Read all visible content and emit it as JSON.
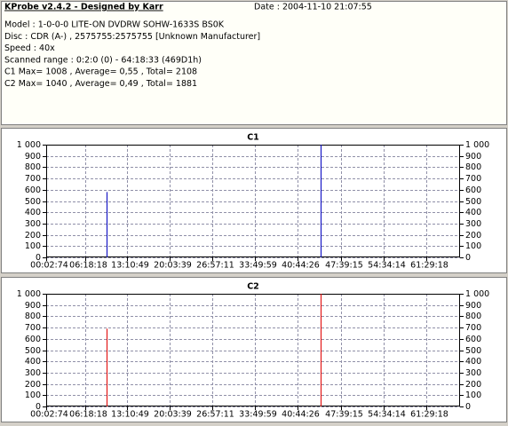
{
  "header": {
    "title": "KProbe v2.4.2 - Designed by Karr",
    "date": "Date : 2004-11-10 21:07:55",
    "lines": [
      "Model : 1-0-0-0 LITE-ON DVDRW SOHW-1633S BS0K",
      "Disc : CDR (A-) , 2575755:2575755 [Unknown Manufacturer]",
      "Speed : 40x",
      "Scanned range : 0:2:0 (0) - 64:18:33 (469D1h)",
      "C1 Max= 1008 , Average= 0,55 , Total= 2108",
      "C2 Max= 1040 , Average= 0,49 , Total= 1881"
    ]
  },
  "chart_data": [
    {
      "type": "bar",
      "title": "C1",
      "x": [
        589,
        2665
      ],
      "values": [
        580,
        1008
      ],
      "color": "#0000c0",
      "xlim": [
        2.987,
        4017
      ],
      "ylim": [
        0,
        1000
      ],
      "grid": true,
      "xticks": [
        {
          "value": 2.987,
          "label": "00:02:74"
        },
        {
          "value": 378.24,
          "label": "06:18:18"
        },
        {
          "value": 790.653,
          "label": "13:10:49"
        },
        {
          "value": 1203.52,
          "label": "20:03:39"
        },
        {
          "value": 1617.147,
          "label": "26:57:11"
        },
        {
          "value": 2029.787,
          "label": "33:49:59"
        },
        {
          "value": 2444.347,
          "label": "40:44:26"
        },
        {
          "value": 2859.2,
          "label": "47:39:15"
        },
        {
          "value": 3274.187,
          "label": "54:34:14"
        },
        {
          "value": 3689.24,
          "label": "61:29:18"
        }
      ],
      "yticks": [
        0,
        100,
        200,
        300,
        400,
        500,
        600,
        700,
        800,
        900,
        {
          "value": 1000,
          "label": "1 000"
        }
      ]
    },
    {
      "type": "bar",
      "title": "C2",
      "x": [
        589,
        2665
      ],
      "values": [
        690,
        1040
      ],
      "color": "#e00000",
      "xlim": [
        2.987,
        4017
      ],
      "ylim": [
        0,
        1000
      ],
      "grid": true,
      "xticks": [
        {
          "value": 2.987,
          "label": "00:02:74"
        },
        {
          "value": 378.24,
          "label": "06:18:18"
        },
        {
          "value": 790.653,
          "label": "13:10:49"
        },
        {
          "value": 1203.52,
          "label": "20:03:39"
        },
        {
          "value": 1617.147,
          "label": "26:57:11"
        },
        {
          "value": 2029.787,
          "label": "33:49:59"
        },
        {
          "value": 2444.347,
          "label": "40:44:26"
        },
        {
          "value": 2859.2,
          "label": "47:39:15"
        },
        {
          "value": 3274.187,
          "label": "54:34:14"
        },
        {
          "value": 3689.24,
          "label": "61:29:18"
        }
      ],
      "yticks": [
        0,
        100,
        200,
        300,
        400,
        500,
        600,
        700,
        800,
        900,
        {
          "value": 1000,
          "label": "1 000"
        }
      ]
    }
  ]
}
